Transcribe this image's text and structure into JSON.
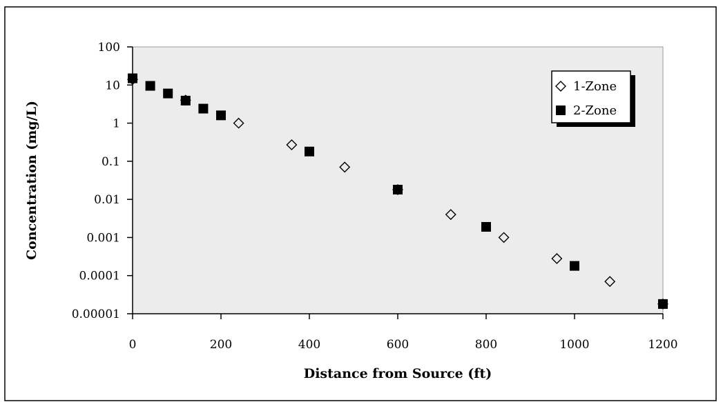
{
  "chart_data": {
    "type": "scatter",
    "title": "",
    "xlabel": "Distance from Source (ft)",
    "ylabel": "Concentration (mg/L)",
    "xlim": [
      0,
      1200
    ],
    "ylim": [
      1e-05,
      100
    ],
    "yscale": "log",
    "x_ticks": [
      0,
      200,
      400,
      600,
      800,
      1000,
      1200
    ],
    "x_tick_labels": [
      "0",
      "200",
      "400",
      "600",
      "800",
      "1000",
      "1200"
    ],
    "y_ticks": [
      100,
      10,
      1,
      0.1,
      0.01,
      0.001,
      0.0001,
      1e-05
    ],
    "y_tick_labels": [
      "100",
      "10",
      "1",
      "0.1",
      "0.01",
      "0.001",
      "0.0001",
      "0.00001"
    ],
    "grid": false,
    "plot_background": "#ececec",
    "legend": {
      "position": "top-right",
      "entries": [
        "1-Zone",
        "2-Zone"
      ]
    },
    "series": [
      {
        "name": "1-Zone",
        "marker": "diamond-open",
        "x": [
          0,
          120,
          240,
          360,
          480,
          600,
          720,
          840,
          960,
          1080,
          1200
        ],
        "y": [
          14,
          4,
          1,
          0.27,
          0.07,
          0.018,
          0.004,
          0.001,
          0.00028,
          7e-05,
          1.8e-05
        ]
      },
      {
        "name": "2-Zone",
        "marker": "square-filled",
        "x": [
          0,
          40,
          80,
          120,
          160,
          200,
          400,
          600,
          800,
          1000,
          1200
        ],
        "y": [
          15,
          9.5,
          6,
          3.9,
          2.4,
          1.6,
          0.18,
          0.018,
          0.0019,
          0.00018,
          1.8e-05
        ]
      }
    ]
  }
}
